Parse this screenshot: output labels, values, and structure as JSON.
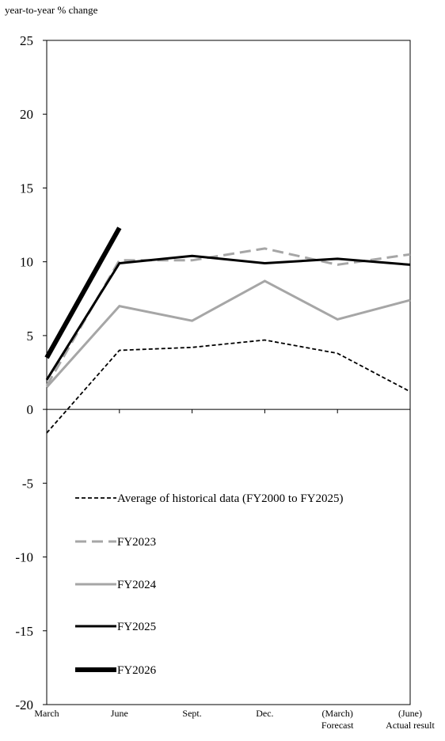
{
  "chart_data": {
    "type": "line",
    "ylabel": "year-to-year % change",
    "ylim": [
      -20,
      25
    ],
    "y_ticks": [
      25,
      20,
      15,
      10,
      5,
      0,
      -5,
      -10,
      -15,
      -20
    ],
    "categories": [
      [
        "March"
      ],
      [
        "June"
      ],
      [
        "Sept."
      ],
      [
        "Dec."
      ],
      [
        "(March)",
        "Forecast"
      ],
      [
        "(June)",
        "Actual result"
      ]
    ],
    "series": [
      {
        "name": "Average of historical data (FY2000 to FY2025)",
        "values": [
          -1.6,
          4.0,
          4.2,
          4.7,
          3.8,
          1.2
        ],
        "color": "#000000",
        "dash": "short",
        "width": "thin"
      },
      {
        "name": "FY2023",
        "values": [
          1.6,
          10.1,
          10.1,
          10.9,
          9.8,
          10.5
        ],
        "color": "#a6a6a6",
        "dash": "long",
        "width": "medium"
      },
      {
        "name": "FY2024",
        "values": [
          1.5,
          7.0,
          6.0,
          8.7,
          6.1,
          7.4
        ],
        "color": "#a6a6a6",
        "dash": "solid",
        "width": "medium"
      },
      {
        "name": "FY2025",
        "values": [
          2.0,
          9.9,
          10.4,
          9.9,
          10.2,
          9.8
        ],
        "color": "#000000",
        "dash": "solid",
        "width": "medium"
      },
      {
        "name": "FY2026",
        "values": [
          3.5,
          12.3,
          null,
          null,
          null,
          null
        ],
        "color": "#000000",
        "dash": "solid",
        "width": "thick"
      }
    ],
    "legend_position": "lower-left inside plot"
  }
}
